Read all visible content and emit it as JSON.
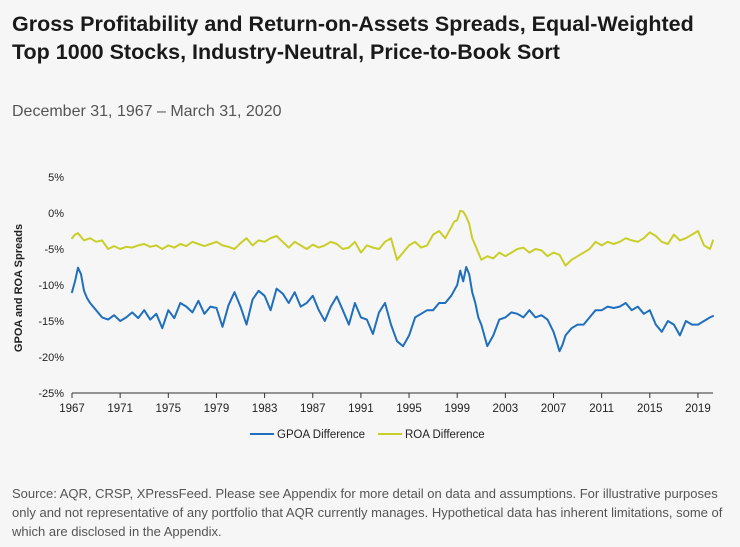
{
  "title": "Gross Profitability and Return-on-Assets Spreads, Equal-Weighted Top 1000 Stocks, Industry-Neutral, Price-to-Book Sort",
  "subtitle": "December 31, 1967 – March 31, 2020",
  "source": "Source: AQR, CRSP, XPressFeed. Please see Appendix for more detail on data and assumptions. For illustrative purposes only and not representative of any portfolio that AQR currently manages. Hypothetical data has inherent limitations, some of which are disclosed in the Appendix.",
  "colors": {
    "gpoa": "#1f6fbf",
    "roa": "#c8cf2a",
    "axis": "#333333",
    "text": "#222222"
  },
  "chart_data": {
    "type": "line",
    "title": "Gross Profitability and Return-on-Assets Spreads, Equal-Weighted Top 1000 Stocks, Industry-Neutral, Price-to-Book Sort",
    "xlabel": "",
    "ylabel": "GPOA and ROA Spreads",
    "xlim": [
      1967,
      2020.25
    ],
    "ylim": [
      -25,
      5
    ],
    "yticks": [
      5,
      0,
      -5,
      -10,
      -15,
      -20,
      -25
    ],
    "ytick_labels": [
      "5%",
      "0%",
      "-5%",
      "-10%",
      "-15%",
      "-20%",
      "-25%"
    ],
    "xticks": [
      1967,
      1971,
      1975,
      1979,
      1983,
      1987,
      1991,
      1995,
      1999,
      2003,
      2007,
      2011,
      2015,
      2019
    ],
    "xtick_labels": [
      "1967",
      "1971",
      "1975",
      "1979",
      "1983",
      "1987",
      "1991",
      "1995",
      "1999",
      "2003",
      "2007",
      "2011",
      "2015",
      "2019"
    ],
    "grid": false,
    "legend": "bottom",
    "series": [
      {
        "name": "GPOA Difference",
        "color": "#1f6fbf",
        "x": [
          1967.0,
          1967.25,
          1967.5,
          1967.75,
          1968.0,
          1968.25,
          1968.5,
          1969.0,
          1969.5,
          1970.0,
          1970.5,
          1971.0,
          1971.5,
          1972.0,
          1972.5,
          1973.0,
          1973.5,
          1974.0,
          1974.5,
          1975.0,
          1975.5,
          1976.0,
          1976.5,
          1977.0,
          1977.5,
          1978.0,
          1978.5,
          1979.0,
          1979.5,
          1980.0,
          1980.5,
          1981.0,
          1981.5,
          1982.0,
          1982.5,
          1983.0,
          1983.5,
          1984.0,
          1984.5,
          1985.0,
          1985.5,
          1986.0,
          1986.5,
          1987.0,
          1987.5,
          1988.0,
          1988.5,
          1989.0,
          1989.5,
          1990.0,
          1990.5,
          1991.0,
          1991.5,
          1992.0,
          1992.5,
          1993.0,
          1993.5,
          1994.0,
          1994.5,
          1995.0,
          1995.5,
          1996.0,
          1996.5,
          1997.0,
          1997.5,
          1998.0,
          1998.5,
          1999.0,
          1999.25,
          1999.5,
          1999.75,
          2000.0,
          2000.25,
          2000.5,
          2000.75,
          2001.0,
          2001.5,
          2002.0,
          2002.5,
          2003.0,
          2003.5,
          2004.0,
          2004.5,
          2005.0,
          2005.5,
          2006.0,
          2006.5,
          2007.0,
          2007.25,
          2007.5,
          2007.75,
          2008.0,
          2008.5,
          2009.0,
          2009.5,
          2010.0,
          2010.5,
          2011.0,
          2011.5,
          2012.0,
          2012.5,
          2013.0,
          2013.5,
          2014.0,
          2014.5,
          2015.0,
          2015.5,
          2016.0,
          2016.5,
          2017.0,
          2017.5,
          2018.0,
          2018.5,
          2019.0,
          2019.5,
          2020.0,
          2020.25
        ],
        "values": [
          -11.0,
          -9.5,
          -7.6,
          -8.5,
          -10.8,
          -11.8,
          -12.5,
          -13.5,
          -14.5,
          -14.8,
          -14.2,
          -15.0,
          -14.5,
          -13.8,
          -14.6,
          -13.5,
          -14.8,
          -14.0,
          -16.0,
          -13.5,
          -14.6,
          -12.5,
          -13.0,
          -13.8,
          -12.2,
          -14.0,
          -13.0,
          -13.2,
          -15.8,
          -12.8,
          -11.0,
          -13.0,
          -15.5,
          -12.0,
          -10.8,
          -11.5,
          -13.5,
          -10.5,
          -11.2,
          -12.5,
          -11.0,
          -13.0,
          -12.5,
          -11.5,
          -13.5,
          -15.0,
          -13.0,
          -11.6,
          -13.5,
          -15.5,
          -12.5,
          -14.5,
          -14.8,
          -16.8,
          -13.8,
          -12.5,
          -15.5,
          -17.8,
          -18.5,
          -17.0,
          -14.5,
          -14.0,
          -13.5,
          -13.5,
          -12.5,
          -12.5,
          -11.5,
          -10.0,
          -8.0,
          -9.5,
          -7.5,
          -8.5,
          -11.0,
          -12.5,
          -14.5,
          -15.5,
          -18.5,
          -17.0,
          -14.8,
          -14.5,
          -13.8,
          -14.0,
          -14.5,
          -13.5,
          -14.5,
          -14.2,
          -14.8,
          -16.5,
          -17.8,
          -19.2,
          -18.3,
          -17.0,
          -16.0,
          -15.5,
          -15.5,
          -14.5,
          -13.5,
          -13.5,
          -13.0,
          -13.2,
          -13.0,
          -12.5,
          -13.5,
          -13.0,
          -14.0,
          -13.5,
          -15.5,
          -16.5,
          -15.0,
          -15.5,
          -17.0,
          -15.0,
          -15.5,
          -15.5,
          -15.0,
          -14.5,
          -14.3
        ]
      },
      {
        "name": "ROA Difference",
        "color": "#c8cf2a",
        "x": [
          1967.0,
          1967.25,
          1967.5,
          1967.75,
          1968.0,
          1968.5,
          1969.0,
          1969.5,
          1970.0,
          1970.5,
          1971.0,
          1971.5,
          1972.0,
          1972.5,
          1973.0,
          1973.5,
          1974.0,
          1974.5,
          1975.0,
          1975.5,
          1976.0,
          1976.5,
          1977.0,
          1977.5,
          1978.0,
          1978.5,
          1979.0,
          1979.5,
          1980.0,
          1980.5,
          1981.0,
          1981.5,
          1982.0,
          1982.5,
          1983.0,
          1983.5,
          1984.0,
          1984.5,
          1985.0,
          1985.5,
          1986.0,
          1986.5,
          1987.0,
          1987.5,
          1988.0,
          1988.5,
          1989.0,
          1989.5,
          1990.0,
          1990.5,
          1991.0,
          1991.5,
          1992.0,
          1992.5,
          1993.0,
          1993.5,
          1994.0,
          1994.5,
          1995.0,
          1995.5,
          1996.0,
          1996.5,
          1997.0,
          1997.5,
          1998.0,
          1998.5,
          1998.75,
          1999.0,
          1999.25,
          1999.5,
          1999.75,
          2000.0,
          2000.25,
          2000.5,
          2000.75,
          2001.0,
          2001.5,
          2002.0,
          2002.5,
          2003.0,
          2003.5,
          2004.0,
          2004.5,
          2005.0,
          2005.5,
          2006.0,
          2006.5,
          2007.0,
          2007.5,
          2008.0,
          2008.5,
          2009.0,
          2009.5,
          2010.0,
          2010.5,
          2011.0,
          2011.5,
          2012.0,
          2012.5,
          2013.0,
          2013.5,
          2014.0,
          2014.5,
          2015.0,
          2015.5,
          2016.0,
          2016.5,
          2017.0,
          2017.5,
          2018.0,
          2018.5,
          2019.0,
          2019.5,
          2020.0,
          2020.25
        ],
        "values": [
          -3.5,
          -3.0,
          -2.8,
          -3.3,
          -3.8,
          -3.5,
          -4.0,
          -3.8,
          -5.0,
          -4.6,
          -5.0,
          -4.7,
          -4.8,
          -4.5,
          -4.3,
          -4.7,
          -4.5,
          -5.0,
          -4.5,
          -4.8,
          -4.3,
          -4.6,
          -4.0,
          -4.3,
          -4.6,
          -4.3,
          -4.0,
          -4.5,
          -4.7,
          -5.0,
          -4.2,
          -3.5,
          -4.5,
          -3.8,
          -4.0,
          -3.5,
          -3.2,
          -4.0,
          -4.8,
          -4.0,
          -4.5,
          -5.0,
          -4.4,
          -4.8,
          -4.5,
          -4.0,
          -4.3,
          -5.0,
          -4.8,
          -4.0,
          -5.5,
          -4.5,
          -4.8,
          -5.0,
          -4.0,
          -3.5,
          -6.5,
          -5.5,
          -4.5,
          -4.0,
          -4.8,
          -4.5,
          -3.0,
          -2.5,
          -3.5,
          -2.0,
          -1.2,
          -1.0,
          0.3,
          0.2,
          -0.5,
          -1.5,
          -3.5,
          -4.5,
          -5.5,
          -6.5,
          -6.0,
          -6.3,
          -5.5,
          -6.0,
          -5.5,
          -5.0,
          -4.8,
          -5.5,
          -5.0,
          -5.2,
          -6.0,
          -5.5,
          -5.8,
          -7.3,
          -6.5,
          -6.0,
          -5.5,
          -5.0,
          -4.0,
          -4.5,
          -4.0,
          -4.3,
          -4.0,
          -3.5,
          -3.8,
          -4.0,
          -3.5,
          -2.7,
          -3.2,
          -4.0,
          -4.3,
          -3.0,
          -3.8,
          -3.5,
          -3.0,
          -2.5,
          -4.5,
          -5.0,
          -3.8
        ]
      }
    ]
  }
}
